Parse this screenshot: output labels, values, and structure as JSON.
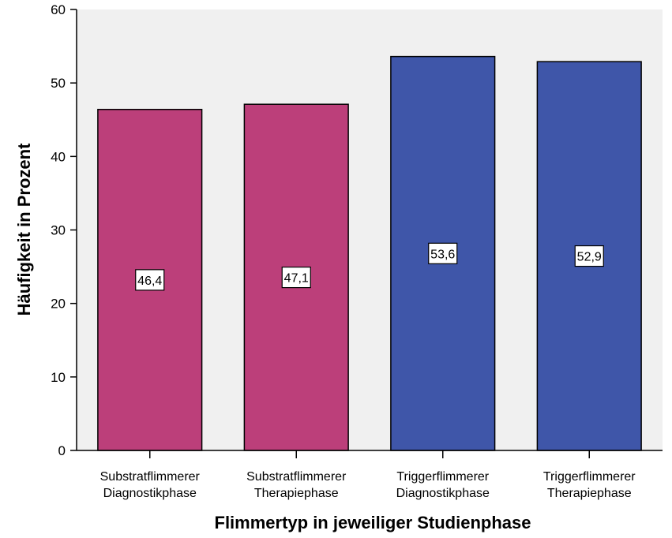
{
  "chart_data": {
    "type": "bar",
    "categories": [
      [
        "Substratflimmerer",
        "Diagnostikphase"
      ],
      [
        "Substratflimmerer",
        "Therapiephase"
      ],
      [
        "Triggerflimmerer",
        "Diagnostikphase"
      ],
      [
        "Triggerflimmerer",
        "Therapiephase"
      ]
    ],
    "values": [
      46.4,
      47.1,
      53.6,
      52.9
    ],
    "data_labels": [
      "46,4",
      "47,1",
      "53,6",
      "52,9"
    ],
    "bar_colors": [
      "#bc3f7a",
      "#bc3f7a",
      "#3f56a9",
      "#3f56a9"
    ],
    "xlabel": "Flimmertyp in jeweiliger Studienphase",
    "ylabel": "Häufigkeit in Prozent",
    "ylim": [
      0,
      60
    ],
    "yticks": [
      0,
      10,
      20,
      30,
      40,
      50,
      60
    ],
    "plot_background": "#f0f0f0",
    "grid": false
  }
}
